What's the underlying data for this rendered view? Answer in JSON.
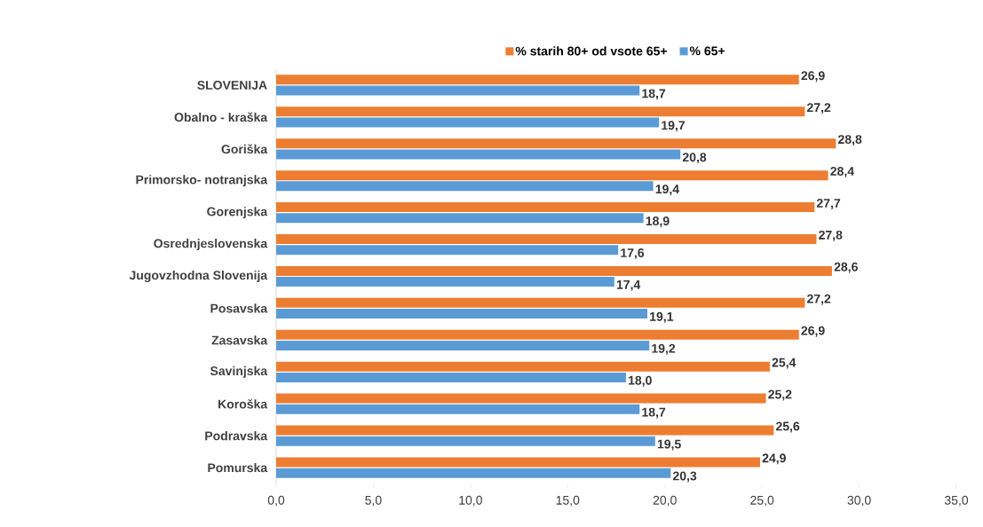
{
  "chart_data": {
    "type": "bar",
    "orientation": "horizontal",
    "categories": [
      "SLOVENIJA",
      "Obalno - kraška",
      "Goriška",
      "Primorsko- notranjska",
      "Gorenjska",
      "Osrednjeslovenska",
      "Jugovzhodna Slovenija",
      "Posavska",
      "Zasavska",
      "Savinjska",
      "Koroška",
      "Podravska",
      "Pomurska"
    ],
    "series": [
      {
        "name": "% starih 80+ od vsote 65+",
        "color": "#ed7d31",
        "values": [
          26.9,
          27.2,
          28.8,
          28.4,
          27.7,
          27.8,
          28.6,
          27.2,
          26.9,
          25.4,
          25.2,
          25.6,
          24.9
        ],
        "value_labels": [
          "26,9",
          "27,2",
          "28,8",
          "28,4",
          "27,7",
          "27,8",
          "28,6",
          "27,2",
          "26,9",
          "25,4",
          "25,2",
          "25,6",
          "24,9"
        ]
      },
      {
        "name": "% 65+",
        "color": "#5b9bd5",
        "values": [
          18.7,
          19.7,
          20.8,
          19.4,
          18.9,
          17.6,
          17.4,
          19.1,
          19.2,
          18.0,
          18.7,
          19.5,
          20.3
        ],
        "value_labels": [
          "18,7",
          "19,7",
          "20,8",
          "19,4",
          "18,9",
          "17,6",
          "17,4",
          "19,1",
          "19,2",
          "18,0",
          "18,7",
          "19,5",
          "20,3"
        ]
      }
    ],
    "xlim": [
      0,
      35
    ],
    "xticks": [
      {
        "value": 0,
        "label": "0,0"
      },
      {
        "value": 5,
        "label": "5,0"
      },
      {
        "value": 10,
        "label": "10,0"
      },
      {
        "value": 15,
        "label": "15,0"
      },
      {
        "value": 20,
        "label": "20,0"
      },
      {
        "value": 25,
        "label": "25,0"
      },
      {
        "value": 30,
        "label": "30,0"
      },
      {
        "value": 35,
        "label": "35,0"
      }
    ],
    "legend": "top"
  }
}
